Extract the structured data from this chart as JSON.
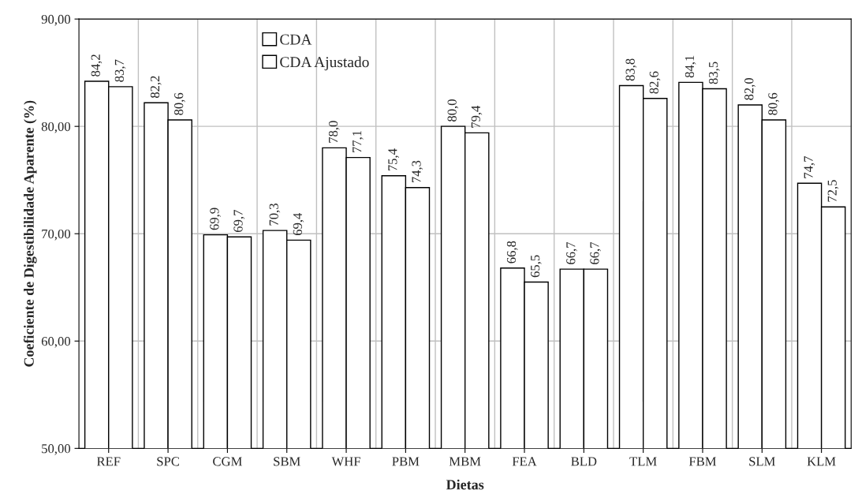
{
  "chart_data": {
    "type": "bar",
    "xlabel": "Dietas",
    "ylabel": "Coeficiente de Digestibilidade Aparente (%)",
    "categories": [
      "REF",
      "SPC",
      "CGM",
      "SBM",
      "WHF",
      "PBM",
      "MBM",
      "FEA",
      "BLD",
      "TLM",
      "FBM",
      "SLM",
      "KLM"
    ],
    "series": [
      {
        "name": "CDA",
        "color": "#ffffff",
        "values": [
          84.2,
          82.2,
          69.9,
          70.3,
          78.0,
          75.4,
          80.0,
          66.8,
          66.7,
          83.8,
          84.1,
          82.0,
          74.7
        ],
        "value_labels": [
          "84,2",
          "82,2",
          "69,9",
          "70,3",
          "78,0",
          "75,4",
          "80,0",
          "66,8",
          "66,7",
          "83,8",
          "84,1",
          "82,0",
          "74,7"
        ]
      },
      {
        "name": "CDA Ajustado",
        "color": "#ffffff",
        "values": [
          83.7,
          80.6,
          69.7,
          69.4,
          77.1,
          74.3,
          79.4,
          65.5,
          66.7,
          82.6,
          83.5,
          80.6,
          72.5
        ],
        "value_labels": [
          "83,7",
          "80,6",
          "69,7",
          "69,4",
          "77,1",
          "74,3",
          "79,4",
          "65,5",
          "66,7",
          "82,6",
          "83,5",
          "80,6",
          "72,5"
        ]
      }
    ],
    "ylim": [
      50,
      90
    ],
    "yticks": [
      {
        "value": 50,
        "label": "50,00"
      },
      {
        "value": 60,
        "label": "60,00"
      },
      {
        "value": 70,
        "label": "70,00"
      },
      {
        "value": 80,
        "label": "80,00"
      },
      {
        "value": 90,
        "label": "90,00"
      }
    ],
    "grid": true,
    "legend": "top left"
  }
}
